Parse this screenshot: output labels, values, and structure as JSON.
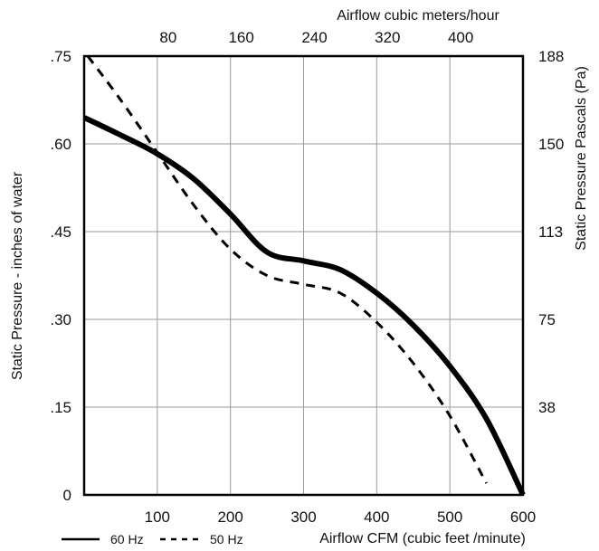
{
  "chart_data": {
    "type": "line",
    "xlabel_bottom": "Airflow  CFM (cubic feet /minute)",
    "xlabel_top": "Airflow cubic meters/hour",
    "ylabel_left": "Static Pressure - inches of water",
    "ylabel_right": "Static Pressure Pascals (Pa)",
    "xlim": [
      0,
      600
    ],
    "ylim": [
      0,
      0.75
    ],
    "x_ticks": [
      100,
      200,
      300,
      400,
      500,
      600
    ],
    "x_tick_labels": [
      "100",
      "200",
      "300",
      "400",
      "500",
      "600"
    ],
    "y_ticks": [
      0,
      0.15,
      0.3,
      0.45,
      0.6,
      0.75
    ],
    "y_tick_labels": [
      "0",
      ".15",
      ".30",
      ".45",
      ".60",
      ".75"
    ],
    "top_ticks": [
      {
        "label": "80",
        "x": 100
      },
      {
        "label": "160",
        "x": 200
      },
      {
        "label": "240",
        "x": 300
      },
      {
        "label": "320",
        "x": 400
      },
      {
        "label": "400",
        "x": 500
      }
    ],
    "right_ticks": [
      {
        "label": "188",
        "y": 0.75
      },
      {
        "label": "150",
        "y": 0.6
      },
      {
        "label": "113",
        "y": 0.45
      },
      {
        "label": "75",
        "y": 0.3
      },
      {
        "label": "38",
        "y": 0.15
      }
    ],
    "grid": true,
    "legend_position": "bottom-left",
    "series": [
      {
        "name": "60 Hz",
        "style": "solid",
        "color": "#000000",
        "x": [
          0,
          50,
          100,
          150,
          200,
          250,
          300,
          350,
          400,
          450,
          500,
          550,
          600
        ],
        "y": [
          0.645,
          0.615,
          0.583,
          0.54,
          0.48,
          0.415,
          0.4,
          0.385,
          0.345,
          0.29,
          0.22,
          0.13,
          0.0
        ]
      },
      {
        "name": "50 Hz",
        "style": "dashed",
        "color": "#000000",
        "x": [
          5,
          50,
          100,
          150,
          200,
          250,
          300,
          350,
          400,
          450,
          500,
          550
        ],
        "y": [
          0.75,
          0.675,
          0.585,
          0.495,
          0.42,
          0.375,
          0.36,
          0.345,
          0.295,
          0.225,
          0.135,
          0.02
        ]
      }
    ]
  }
}
